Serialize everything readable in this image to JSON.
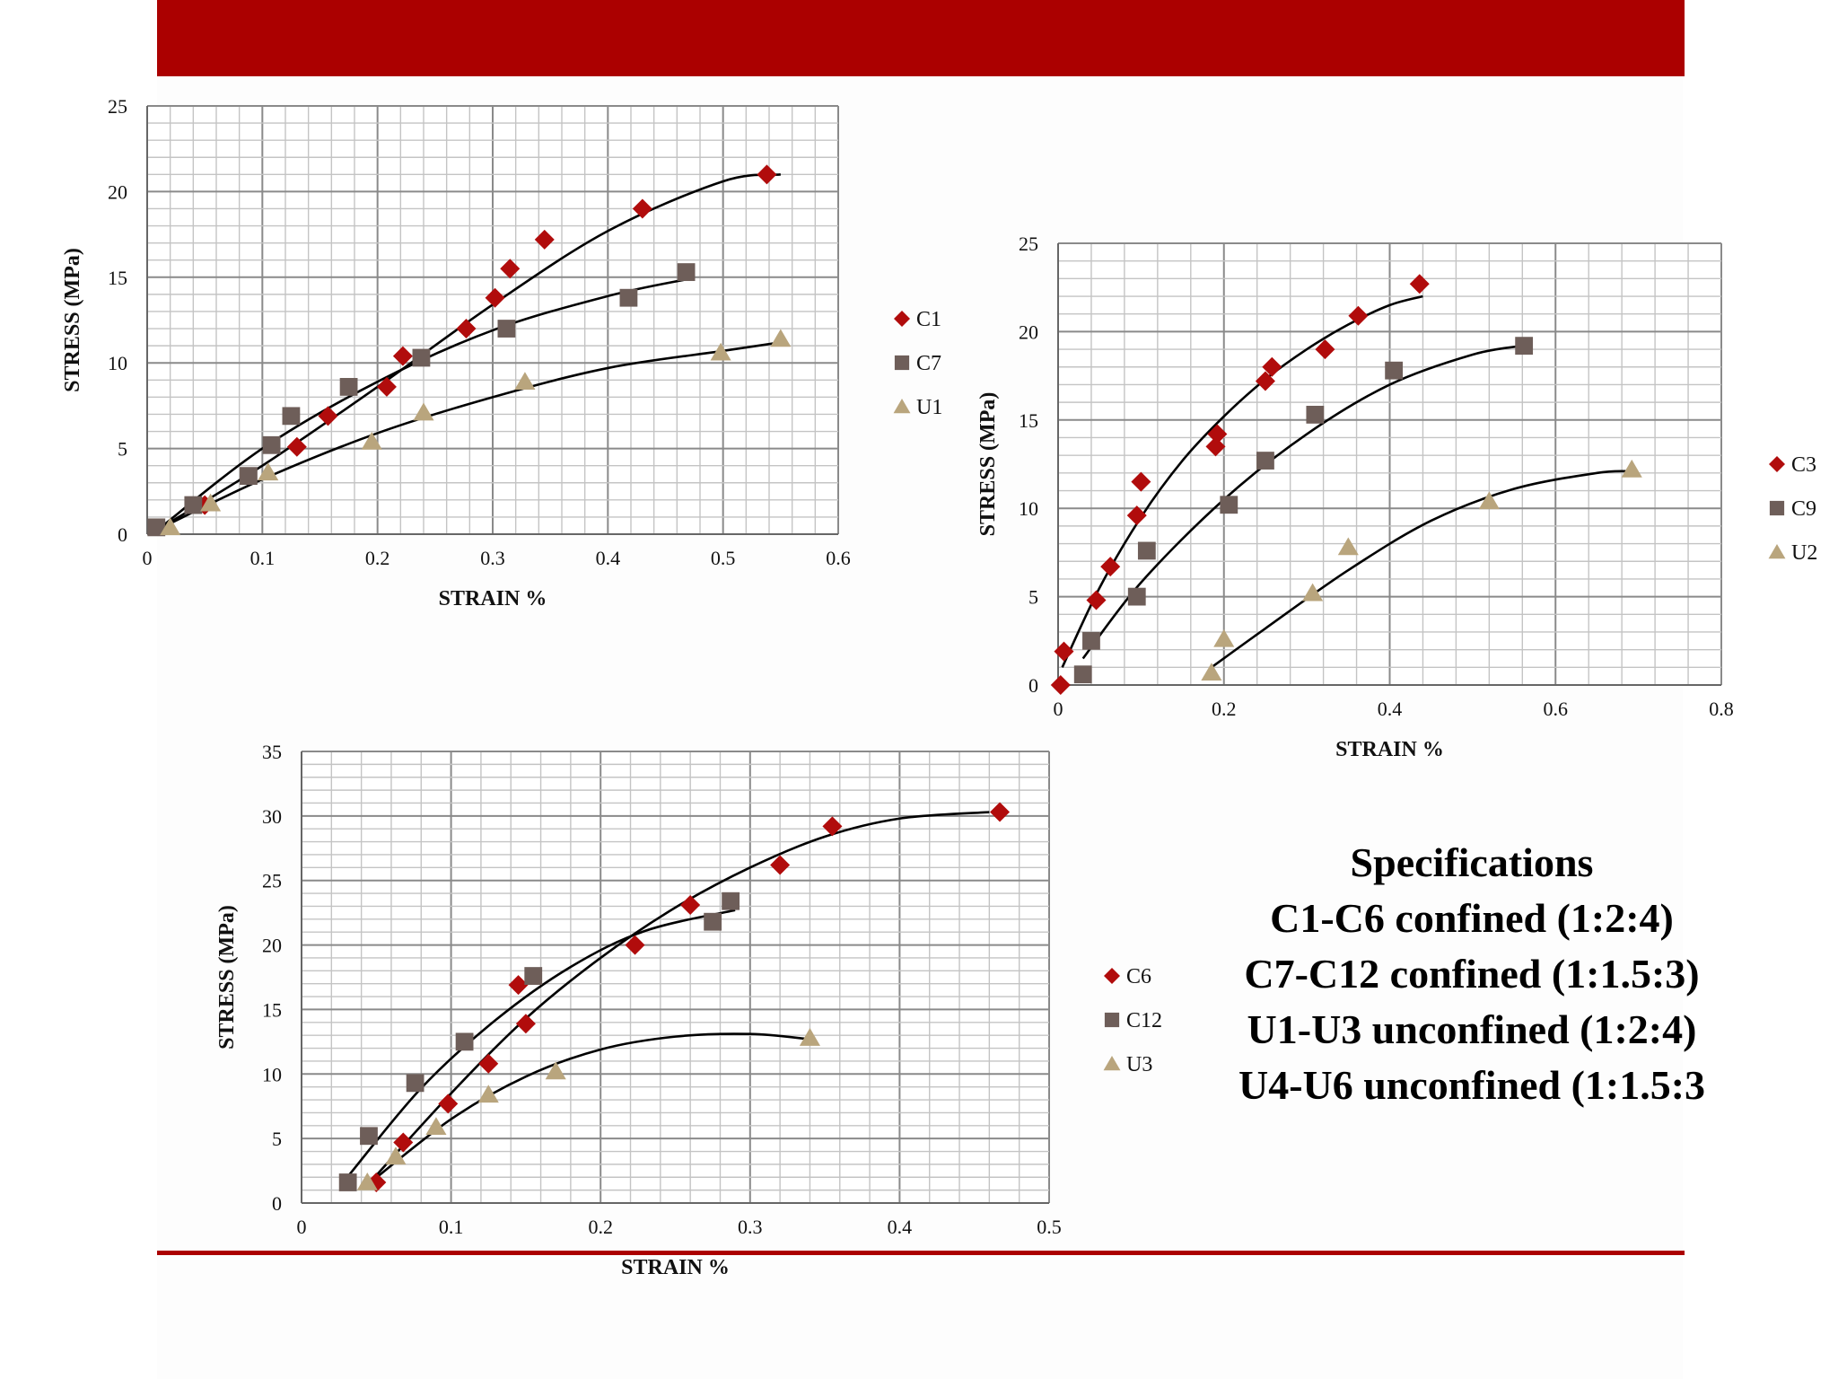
{
  "colors": {
    "banner": "#ab0000",
    "diamond": "#b10c0c",
    "square": "#6e5e59",
    "triangle": "#b9a57d",
    "grid_minor": "#c4c4c4",
    "grid_major": "#8a8a8a",
    "curve": "#000000"
  },
  "specifications": {
    "title": "Specifications",
    "lines": [
      "C1-C6 confined (1:2:4)",
      "C7-C12 confined (1:1.5:3)",
      "U1-U3 unconfined (1:2:4)",
      "U4-U6 unconfined (1:1.5:3"
    ]
  },
  "chart_data": [
    {
      "type": "scatter",
      "xlabel": "STRAIN %",
      "ylabel": "STRESS (MPa)",
      "xlim": [
        0,
        0.6
      ],
      "ylim": [
        0,
        25
      ],
      "xticks": [
        0,
        0.1,
        0.2,
        0.3,
        0.4,
        0.5,
        0.6
      ],
      "yticks": [
        0,
        5,
        10,
        15,
        20,
        25
      ],
      "xtick_labels": [
        "0",
        "0.1",
        "0.2",
        "0.3",
        "0.4",
        "0.5",
        "0.6"
      ],
      "ytick_labels": [
        "0",
        "5",
        "10",
        "15",
        "20",
        "25"
      ],
      "minor_x": 0.02,
      "minor_y": 1,
      "grid": true,
      "legend_position": "right",
      "series": [
        {
          "name": "C1",
          "marker": "diamond",
          "x": [
            0.05,
            0.13,
            0.157,
            0.208,
            0.222,
            0.277,
            0.302,
            0.315,
            0.345,
            0.43,
            0.538
          ],
          "y": [
            1.7,
            5.1,
            6.9,
            8.6,
            10.4,
            12.0,
            13.8,
            15.5,
            17.2,
            19.0,
            21.0
          ],
          "trend": [
            [
              0.01,
              0.3
            ],
            [
              0.1,
              4.0
            ],
            [
              0.2,
              8.6
            ],
            [
              0.3,
              13.4
            ],
            [
              0.4,
              17.7
            ],
            [
              0.5,
              20.6
            ],
            [
              0.55,
              21.0
            ]
          ]
        },
        {
          "name": "C7",
          "marker": "square",
          "x": [
            0.008,
            0.04,
            0.088,
            0.108,
            0.125,
            0.175,
            0.238,
            0.312,
            0.418,
            0.468
          ],
          "y": [
            0.4,
            1.7,
            3.4,
            5.2,
            6.9,
            8.6,
            10.3,
            12.0,
            13.8,
            15.3
          ],
          "trend": [
            [
              0.01,
              0.3
            ],
            [
              0.1,
              5.0
            ],
            [
              0.2,
              8.9
            ],
            [
              0.3,
              11.9
            ],
            [
              0.4,
              13.9
            ],
            [
              0.47,
              14.9
            ]
          ]
        },
        {
          "name": "U1",
          "marker": "triangle",
          "x": [
            0.02,
            0.055,
            0.105,
            0.195,
            0.24,
            0.328,
            0.498,
            0.55
          ],
          "y": [
            0.4,
            1.8,
            3.6,
            5.4,
            7.1,
            8.9,
            10.6,
            11.4
          ],
          "trend": [
            [
              0.01,
              0.3
            ],
            [
              0.1,
              3.2
            ],
            [
              0.2,
              5.9
            ],
            [
              0.3,
              8.0
            ],
            [
              0.4,
              9.7
            ],
            [
              0.5,
              10.7
            ],
            [
              0.55,
              11.2
            ]
          ]
        }
      ]
    },
    {
      "type": "scatter",
      "xlabel": "STRAIN %",
      "ylabel": "STRESS (MPa)",
      "xlim": [
        0,
        0.8
      ],
      "ylim": [
        0,
        25
      ],
      "xticks": [
        0,
        0.2,
        0.4,
        0.6,
        0.8
      ],
      "yticks": [
        0,
        5,
        10,
        15,
        20,
        25
      ],
      "xtick_labels": [
        "0",
        "0.2",
        "0.4",
        "0.6",
        "0.8"
      ],
      "ytick_labels": [
        "0",
        "5",
        "10",
        "15",
        "20",
        "25"
      ],
      "minor_x": 0.04,
      "minor_y": 1,
      "grid": true,
      "legend_position": "right",
      "series": [
        {
          "name": "C3",
          "marker": "diamond",
          "x": [
            0.003,
            0.007,
            0.046,
            0.063,
            0.095,
            0.1,
            0.19,
            0.192,
            0.25,
            0.258,
            0.322,
            0.362,
            0.436
          ],
          "y": [
            0,
            1.9,
            4.8,
            6.7,
            9.6,
            11.5,
            13.5,
            14.2,
            17.2,
            18.0,
            19.0,
            20.9,
            22.7
          ],
          "trend": [
            [
              0.005,
              1.0
            ],
            [
              0.05,
              5.5
            ],
            [
              0.1,
              9.5
            ],
            [
              0.15,
              12.7
            ],
            [
              0.2,
              15.2
            ],
            [
              0.25,
              17.3
            ],
            [
              0.3,
              19.0
            ],
            [
              0.35,
              20.4
            ],
            [
              0.4,
              21.5
            ],
            [
              0.44,
              22.0
            ]
          ]
        },
        {
          "name": "C9",
          "marker": "square",
          "x": [
            0.03,
            0.04,
            0.095,
            0.107,
            0.206,
            0.25,
            0.31,
            0.405,
            0.562
          ],
          "y": [
            0.6,
            2.5,
            5.0,
            7.6,
            10.2,
            12.7,
            15.3,
            17.8,
            19.2
          ],
          "trend": [
            [
              0.03,
              1.5
            ],
            [
              0.1,
              5.8
            ],
            [
              0.2,
              10.5
            ],
            [
              0.3,
              14.2
            ],
            [
              0.4,
              17.0
            ],
            [
              0.5,
              18.7
            ],
            [
              0.56,
              19.2
            ]
          ]
        },
        {
          "name": "U2",
          "marker": "triangle",
          "x": [
            0.185,
            0.2,
            0.307,
            0.35,
            0.52,
            0.692
          ],
          "y": [
            0.7,
            2.6,
            5.2,
            7.8,
            10.4,
            12.2
          ],
          "trend": [
            [
              0.185,
              1.0
            ],
            [
              0.25,
              3.2
            ],
            [
              0.35,
              6.5
            ],
            [
              0.45,
              9.3
            ],
            [
              0.55,
              11.1
            ],
            [
              0.65,
              12.0
            ],
            [
              0.69,
              12.1
            ]
          ]
        }
      ]
    },
    {
      "type": "scatter",
      "xlabel": "STRAIN %",
      "ylabel": "STRESS (MPa)",
      "xlim": [
        0,
        0.5
      ],
      "ylim": [
        0,
        35
      ],
      "xticks": [
        0,
        0.1,
        0.2,
        0.3,
        0.4,
        0.5
      ],
      "yticks": [
        0,
        5,
        10,
        15,
        20,
        25,
        30,
        35
      ],
      "xtick_labels": [
        "0",
        "0.1",
        "0.2",
        "0.3",
        "0.4",
        "0.5"
      ],
      "ytick_labels": [
        "0",
        "5",
        "10",
        "15",
        "20",
        "25",
        "30",
        "35"
      ],
      "minor_x": 0.02,
      "minor_y": 1,
      "grid": true,
      "legend_position": "left",
      "series": [
        {
          "name": "C6",
          "marker": "diamond",
          "x": [
            0.05,
            0.068,
            0.098,
            0.125,
            0.145,
            0.15,
            0.223,
            0.26,
            0.32,
            0.355,
            0.467
          ],
          "y": [
            1.6,
            4.7,
            7.7,
            10.8,
            16.9,
            13.9,
            20.0,
            23.1,
            26.2,
            29.2,
            30.3
          ],
          "trend": [
            [
              0.045,
              1.5
            ],
            [
              0.1,
              8.5
            ],
            [
              0.15,
              14.3
            ],
            [
              0.2,
              19.0
            ],
            [
              0.25,
              22.9
            ],
            [
              0.3,
              26.0
            ],
            [
              0.35,
              28.4
            ],
            [
              0.4,
              29.8
            ],
            [
              0.46,
              30.3
            ]
          ]
        },
        {
          "name": "C12",
          "marker": "square",
          "x": [
            0.031,
            0.045,
            0.076,
            0.109,
            0.155,
            0.275,
            0.287
          ],
          "y": [
            1.6,
            5.2,
            9.3,
            12.5,
            17.6,
            21.8,
            23.4
          ],
          "trend": [
            [
              0.032,
              2.2
            ],
            [
              0.08,
              8.9
            ],
            [
              0.13,
              14.2
            ],
            [
              0.18,
              18.3
            ],
            [
              0.23,
              21.1
            ],
            [
              0.29,
              22.7
            ]
          ]
        },
        {
          "name": "U3",
          "marker": "triangle",
          "x": [
            0.044,
            0.063,
            0.09,
            0.125,
            0.17,
            0.34
          ],
          "y": [
            1.6,
            3.6,
            5.9,
            8.4,
            10.2,
            12.8
          ],
          "trend": [
            [
              0.045,
              1.5
            ],
            [
              0.1,
              6.5
            ],
            [
              0.15,
              9.8
            ],
            [
              0.2,
              11.9
            ],
            [
              0.25,
              12.9
            ],
            [
              0.3,
              13.1
            ],
            [
              0.34,
              12.7
            ]
          ]
        }
      ]
    }
  ]
}
